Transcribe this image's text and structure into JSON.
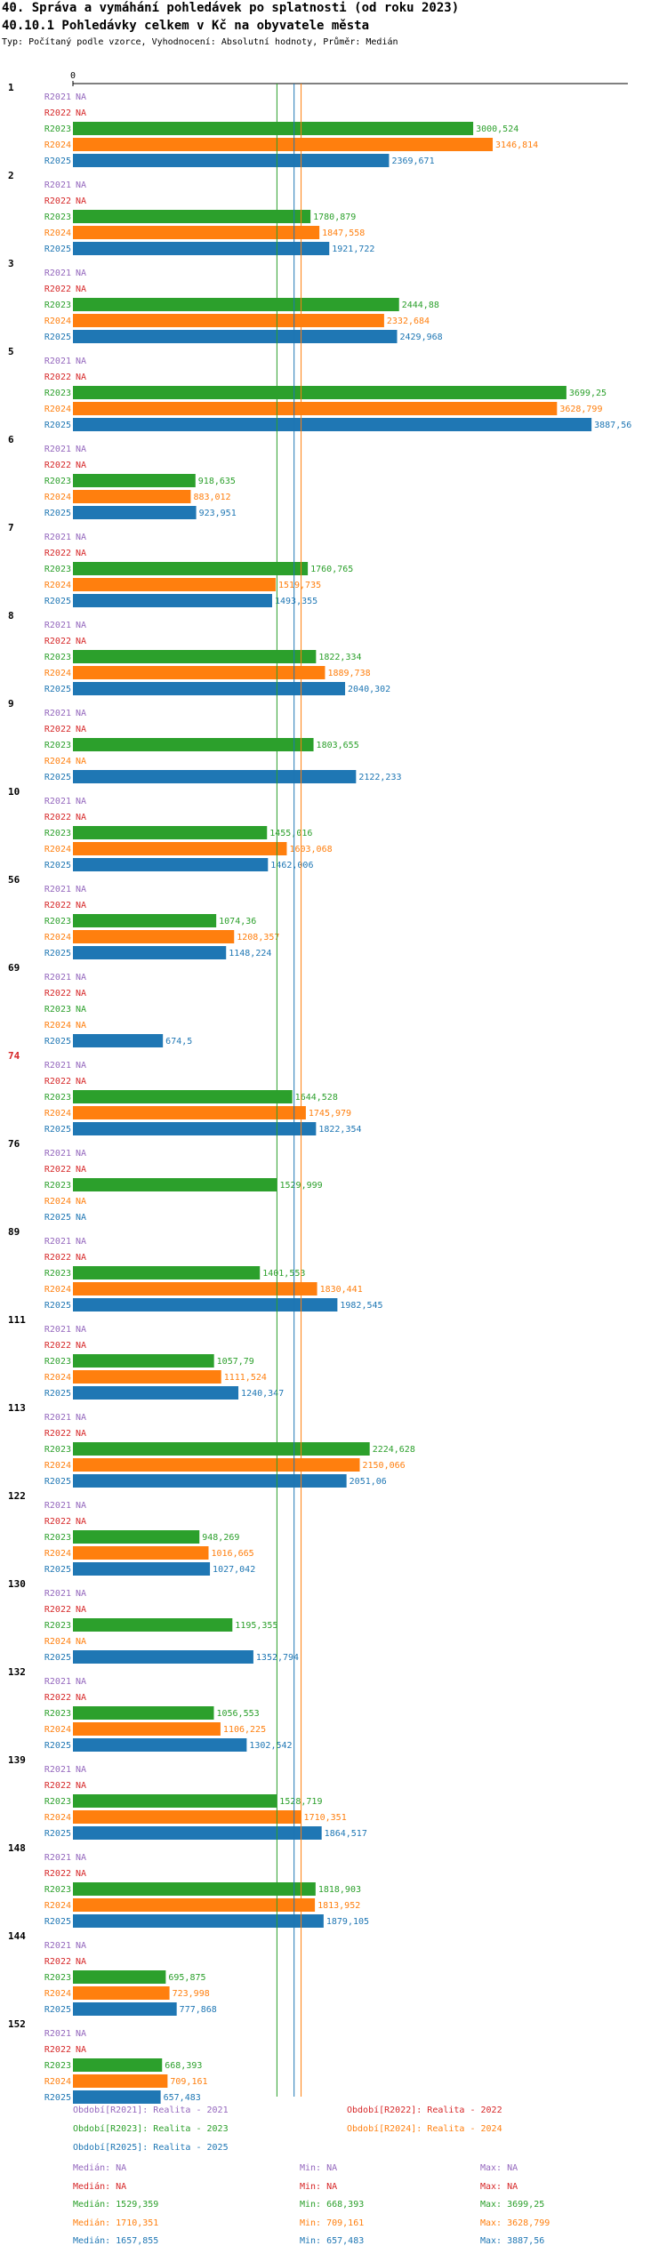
{
  "title": "40. Správa a vymáhání pohledávek po splatnosti (od roku 2023)",
  "subtitle_title": "40.10.1 Pohledávky celkem v Kč na obyvatele města",
  "description": "Typ: Počítaný podle vzorce, Vyhodnocení: Absolutní hodnoty, Průměr: Medián",
  "colors": {
    "R2021": "#9467bd",
    "R2022": "#d62728",
    "R2023": "#2ca02c",
    "R2024": "#ff7f0e",
    "R2025": "#1f77b4"
  },
  "chart_data": {
    "type": "bar",
    "orientation": "horizontal",
    "x_axis_zero_label": "0",
    "xlim": [
      0,
      3887.56
    ],
    "na_label": "NA",
    "series_names": [
      "R2021",
      "R2022",
      "R2023",
      "R2024",
      "R2025"
    ],
    "groups": [
      {
        "id": "1",
        "highlight": false,
        "values": [
          null,
          null,
          3000.524,
          3146.814,
          2369.671
        ],
        "labels": [
          "NA",
          "NA",
          "3000,524",
          "3146,814",
          "2369,671"
        ]
      },
      {
        "id": "2",
        "highlight": false,
        "values": [
          null,
          null,
          1780.879,
          1847.558,
          1921.722
        ],
        "labels": [
          "NA",
          "NA",
          "1780,879",
          "1847,558",
          "1921,722"
        ]
      },
      {
        "id": "3",
        "highlight": false,
        "values": [
          null,
          null,
          2444.88,
          2332.684,
          2429.968
        ],
        "labels": [
          "NA",
          "NA",
          "2444,88",
          "2332,684",
          "2429,968"
        ]
      },
      {
        "id": "5",
        "highlight": false,
        "values": [
          null,
          null,
          3699.25,
          3628.799,
          3887.56
        ],
        "labels": [
          "NA",
          "NA",
          "3699,25",
          "3628,799",
          "3887,56"
        ]
      },
      {
        "id": "6",
        "highlight": false,
        "values": [
          null,
          null,
          918.635,
          883.012,
          923.951
        ],
        "labels": [
          "NA",
          "NA",
          "918,635",
          "883,012",
          "923,951"
        ]
      },
      {
        "id": "7",
        "highlight": false,
        "values": [
          null,
          null,
          1760.765,
          1519.735,
          1493.355
        ],
        "labels": [
          "NA",
          "NA",
          "1760,765",
          "1519,735",
          "1493,355"
        ]
      },
      {
        "id": "8",
        "highlight": false,
        "values": [
          null,
          null,
          1822.334,
          1889.738,
          2040.302
        ],
        "labels": [
          "NA",
          "NA",
          "1822,334",
          "1889,738",
          "2040,302"
        ]
      },
      {
        "id": "9",
        "highlight": false,
        "values": [
          null,
          null,
          1803.655,
          null,
          2122.233
        ],
        "labels": [
          "NA",
          "NA",
          "1803,655",
          "NA",
          "2122,233"
        ]
      },
      {
        "id": "10",
        "highlight": false,
        "values": [
          null,
          null,
          1455.016,
          1603.068,
          1462.006
        ],
        "labels": [
          "NA",
          "NA",
          "1455,016",
          "1603,068",
          "1462,006"
        ]
      },
      {
        "id": "56",
        "highlight": false,
        "values": [
          null,
          null,
          1074.36,
          1208.357,
          1148.224
        ],
        "labels": [
          "NA",
          "NA",
          "1074,36",
          "1208,357",
          "1148,224"
        ]
      },
      {
        "id": "69",
        "highlight": false,
        "values": [
          null,
          null,
          null,
          null,
          674.5
        ],
        "labels": [
          "NA",
          "NA",
          "NA",
          "NA",
          "674,5"
        ]
      },
      {
        "id": "74",
        "highlight": true,
        "values": [
          null,
          null,
          1644.528,
          1745.979,
          1822.354
        ],
        "labels": [
          "NA",
          "NA",
          "1644,528",
          "1745,979",
          "1822,354"
        ]
      },
      {
        "id": "76",
        "highlight": false,
        "values": [
          null,
          null,
          1529.999,
          null,
          null
        ],
        "labels": [
          "NA",
          "NA",
          "1529,999",
          "NA",
          "NA"
        ]
      },
      {
        "id": "89",
        "highlight": false,
        "values": [
          null,
          null,
          1401.553,
          1830.441,
          1982.545
        ],
        "labels": [
          "NA",
          "NA",
          "1401,553",
          "1830,441",
          "1982,545"
        ]
      },
      {
        "id": "111",
        "highlight": false,
        "values": [
          null,
          null,
          1057.79,
          1111.524,
          1240.347
        ],
        "labels": [
          "NA",
          "NA",
          "1057,79",
          "1111,524",
          "1240,347"
        ]
      },
      {
        "id": "113",
        "highlight": false,
        "values": [
          null,
          null,
          2224.628,
          2150.066,
          2051.06
        ],
        "labels": [
          "NA",
          "NA",
          "2224,628",
          "2150,066",
          "2051,06"
        ]
      },
      {
        "id": "122",
        "highlight": false,
        "values": [
          null,
          null,
          948.269,
          1016.665,
          1027.042
        ],
        "labels": [
          "NA",
          "NA",
          "948,269",
          "1016,665",
          "1027,042"
        ]
      },
      {
        "id": "130",
        "highlight": false,
        "values": [
          null,
          null,
          1195.355,
          null,
          1352.794
        ],
        "labels": [
          "NA",
          "NA",
          "1195,355",
          "NA",
          "1352,794"
        ]
      },
      {
        "id": "132",
        "highlight": false,
        "values": [
          null,
          null,
          1056.553,
          1106.225,
          1302.542
        ],
        "labels": [
          "NA",
          "NA",
          "1056,553",
          "1106,225",
          "1302,542"
        ]
      },
      {
        "id": "139",
        "highlight": false,
        "values": [
          null,
          null,
          1528.719,
          1710.351,
          1864.517
        ],
        "labels": [
          "NA",
          "NA",
          "1528,719",
          "1710,351",
          "1864,517"
        ]
      },
      {
        "id": "148",
        "highlight": false,
        "values": [
          null,
          null,
          1818.903,
          1813.952,
          1879.105
        ],
        "labels": [
          "NA",
          "NA",
          "1818,903",
          "1813,952",
          "1879,105"
        ]
      },
      {
        "id": "144",
        "highlight": false,
        "values": [
          null,
          null,
          695.875,
          723.998,
          777.868
        ],
        "labels": [
          "NA",
          "NA",
          "695,875",
          "723,998",
          "777,868"
        ]
      },
      {
        "id": "152",
        "highlight": false,
        "values": [
          null,
          null,
          668.393,
          709.161,
          657.483
        ],
        "labels": [
          "NA",
          "NA",
          "668,393",
          "709,161",
          "657,483"
        ]
      }
    ],
    "median_lines": [
      {
        "series": "R2023",
        "value": 1529.359
      },
      {
        "series": "R2024",
        "value": 1710.351
      },
      {
        "series": "R2025",
        "value": 1657.855
      }
    ]
  },
  "legend": {
    "periods": [
      {
        "series": "R2021",
        "label": "Období[R2021]: Realita - 2021"
      },
      {
        "series": "R2022",
        "label": "Období[R2022]: Realita - 2022"
      },
      {
        "series": "R2023",
        "label": "Období[R2023]: Realita - 2023"
      },
      {
        "series": "R2024",
        "label": "Období[R2024]: Realita - 2024"
      },
      {
        "series": "R2025",
        "label": "Období[R2025]: Realita - 2025"
      }
    ],
    "stats": [
      {
        "series": "R2021",
        "median": "Medián: NA",
        "min": "Min: NA",
        "max": "Max: NA"
      },
      {
        "series": "R2022",
        "median": "Medián: NA",
        "min": "Min: NA",
        "max": "Max: NA"
      },
      {
        "series": "R2023",
        "median": "Medián: 1529,359",
        "min": "Min: 668,393",
        "max": "Max: 3699,25"
      },
      {
        "series": "R2024",
        "median": "Medián: 1710,351",
        "min": "Min: 709,161",
        "max": "Max: 3628,799"
      },
      {
        "series": "R2025",
        "median": "Medián: 1657,855",
        "min": "Min: 657,483",
        "max": "Max: 3887,56"
      }
    ]
  }
}
